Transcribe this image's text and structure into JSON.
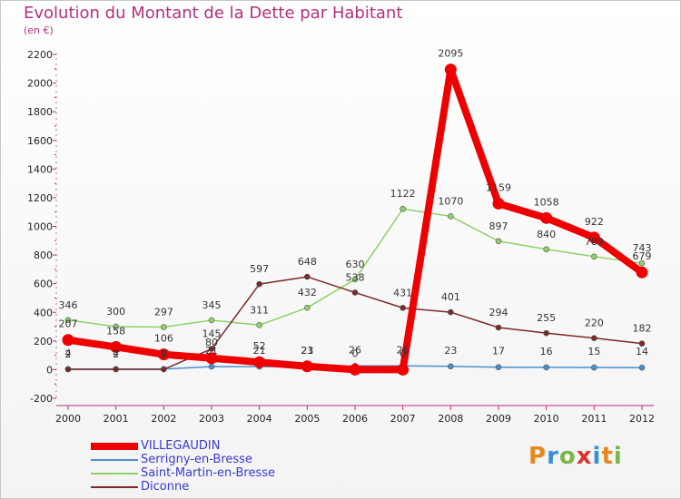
{
  "title": "Evolution du Montant de la Dette par Habitant",
  "subtitle": "(en €)",
  "logo": {
    "text": "Proxiti",
    "colors": [
      "#e8871e",
      "#3c8fd6",
      "#7ab648",
      "#d9342b",
      "#3c8fd6",
      "#e8871e",
      "#7ab648"
    ]
  },
  "chart_data": {
    "type": "line",
    "x": [
      "2000",
      "2001",
      "2002",
      "2003",
      "2004",
      "2005",
      "2006",
      "2007",
      "2008",
      "2009",
      "2010",
      "2011",
      "2012"
    ],
    "ylim": [
      -200,
      2200
    ],
    "yticks": [
      "-200",
      "0",
      "200",
      "400",
      "600",
      "800",
      "1000",
      "1200",
      "1400",
      "1600",
      "1800",
      "2000",
      "2200"
    ],
    "grid": false,
    "legend_position": "bottom-left",
    "series": [
      {
        "name": "VILLEGAUDIN",
        "color": "#ee0000",
        "values": [
          207,
          158,
          106,
          80,
          52,
          23,
          0,
          0,
          2095,
          1159,
          1058,
          922,
          679
        ],
        "labels": [
          "207",
          "158",
          "106",
          "80",
          "52",
          "23",
          "0",
          "0",
          "2095",
          "1159",
          "1058",
          "922",
          "679"
        ]
      },
      {
        "name": "Serrigny-en-Bresse",
        "color": "#4a8fc8",
        "values": [
          4,
          4,
          4,
          21,
          21,
          21,
          26,
          26,
          23,
          17,
          16,
          15,
          14
        ],
        "labels": [
          "4",
          "4",
          "4",
          "21",
          "21",
          "21",
          "26",
          "26",
          "23",
          "17",
          "16",
          "15",
          "14"
        ]
      },
      {
        "name": "Saint-Martin-en-Bresse",
        "color": "#8ed06a",
        "values": [
          346,
          300,
          297,
          345,
          311,
          432,
          630,
          1122,
          1070,
          897,
          840,
          789,
          743
        ],
        "labels": [
          "346",
          "300",
          "297",
          "345",
          "311",
          "432",
          "630",
          "1122",
          "1070",
          "897",
          "840",
          "789",
          "743"
        ]
      },
      {
        "name": "Diconne",
        "color": "#7a2a2a",
        "values": [
          2,
          2,
          2,
          145,
          597,
          648,
          538,
          431,
          401,
          294,
          255,
          220,
          182
        ],
        "labels": [
          "2",
          "2",
          "2",
          "145",
          "597",
          "648",
          "538",
          "431",
          "401",
          "294",
          "255",
          "220",
          "182"
        ]
      }
    ]
  }
}
